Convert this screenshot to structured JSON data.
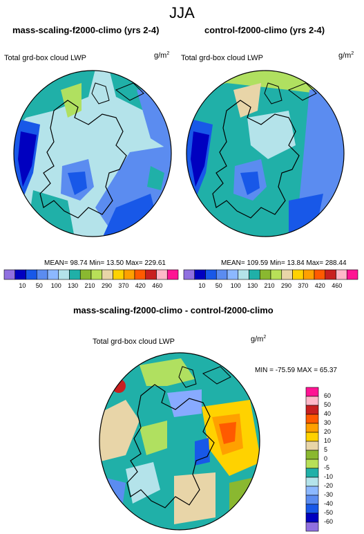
{
  "figure": {
    "title": "JJA",
    "colors": {
      "land_outline": "#000000",
      "ocean_light": "#b4e3ea",
      "teal": "#20b0a8",
      "blue_mid": "#5b8cf0",
      "blue_light": "#88aaff",
      "blue_dark": "#1030d8",
      "green_lt": "#b0e060",
      "green": "#8ab830"
    }
  },
  "panels": [
    {
      "id": "left",
      "title": "mass-scaling-f2000-climo (yrs 2-4)",
      "variable": "Total grd-box cloud LWP",
      "units": "g/m",
      "units_sup": "2",
      "stats": "MEAN=  98.74  Min=  13.50  Max= 229.61"
    },
    {
      "id": "right",
      "title": "control-f2000-climo (yrs 2-4)",
      "variable": "Total grd-box cloud LWP",
      "units": "g/m",
      "units_sup": "2",
      "stats": "MEAN= 109.59  Min=  13.84  Max= 288.44"
    }
  ],
  "top_colorbar": {
    "labels": [
      "10",
      "50",
      "100",
      "130",
      "210",
      "290",
      "370",
      "420",
      "460"
    ],
    "colors": [
      "#9070e0",
      "#0000c0",
      "#1858e8",
      "#5b8cf0",
      "#8cb8ff",
      "#b4e3ea",
      "#20b0a8",
      "#8ab830",
      "#b8e058",
      "#e8d5a8",
      "#ffd200",
      "#ffa000",
      "#ff5a00",
      "#c82020",
      "#ffb8c8",
      "#ff1493"
    ]
  },
  "diff_panel": {
    "title": "mass-scaling-f2000-climo - control-f2000-climo",
    "variable": "Total grd-box cloud LWP",
    "units": "g/m",
    "units_sup": "2",
    "stats": "MIN = -75.59 MAX =  65.37"
  },
  "diff_colorbar": {
    "labels": [
      "60",
      "50",
      "40",
      "30",
      "20",
      "10",
      "5",
      "0",
      "-5",
      "-10",
      "-20",
      "-30",
      "-40",
      "-50",
      "-60"
    ],
    "colors": [
      "#ff1493",
      "#ffb8c8",
      "#c82020",
      "#ff5a00",
      "#ffa000",
      "#ffd200",
      "#e8d5a8",
      "#8ab830",
      "#b8e058",
      "#20b0a8",
      "#b4e3ea",
      "#8cb8ff",
      "#5b8cf0",
      "#1858e8",
      "#0000c0",
      "#9070e0"
    ]
  }
}
